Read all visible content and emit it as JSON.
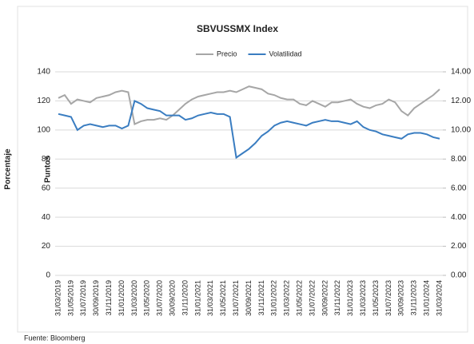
{
  "chart_data": {
    "type": "line",
    "title": "SBVUSSMX Index",
    "y_label": "Puntos",
    "y2_label": "Porcentaje",
    "source": "Fuente: Bloomberg",
    "categories": [
      "31/03/2019",
      null,
      "31/05/2019",
      null,
      "31/07/2019",
      null,
      "30/09/2019",
      null,
      "31/11/2019",
      null,
      "31/01/2020",
      null,
      "31/03/2020",
      null,
      "31/05/2020",
      null,
      "31/07/2020",
      null,
      "30/09/2020",
      null,
      "31/11/2020",
      null,
      "31/01/2021",
      null,
      "31/03/2021",
      null,
      "31/05/2021",
      null,
      "31/07/2021",
      null,
      "30/09/2021",
      null,
      "31/11/2021",
      null,
      "31/01/2022",
      null,
      "31/03/2022",
      null,
      "31/05/2022",
      null,
      "31/07/2022",
      null,
      "30/09/2022",
      null,
      "31/11/2022",
      null,
      "31/01/2023",
      null,
      "31/03/2023",
      null,
      "31/05/2023",
      null,
      "31/07/2023",
      null,
      "30/09/2023",
      null,
      "31/11/2023",
      null,
      "31/01/2024",
      null,
      "31/03/2024"
    ],
    "series": [
      {
        "name": "Precio",
        "color": "#a6a6a6",
        "values": [
          122,
          124,
          118,
          121,
          120,
          119,
          122,
          123,
          124,
          126,
          127,
          126,
          104,
          106,
          107,
          107,
          108,
          107,
          110,
          114,
          118,
          121,
          123,
          124,
          125,
          126,
          126,
          127,
          126,
          128,
          130,
          129,
          128,
          125,
          124,
          122,
          121,
          121,
          118,
          117,
          120,
          118,
          116,
          119,
          119,
          120,
          121,
          118,
          116,
          115,
          117,
          118,
          121,
          119,
          113,
          110,
          115,
          118,
          121,
          124,
          128
        ]
      },
      {
        "name": "Volatilidad",
        "color": "#3a7dc1",
        "axis": "y2",
        "values": [
          11.1,
          11.0,
          10.9,
          10.0,
          10.3,
          10.4,
          10.3,
          10.2,
          10.3,
          10.3,
          10.1,
          10.3,
          12.0,
          11.8,
          11.5,
          11.4,
          11.3,
          11.0,
          11.0,
          11.0,
          10.7,
          10.8,
          11.0,
          11.1,
          11.2,
          11.1,
          11.1,
          10.9,
          8.1,
          8.4,
          8.7,
          9.1,
          9.6,
          9.9,
          10.3,
          10.5,
          10.6,
          10.5,
          10.4,
          10.3,
          10.5,
          10.6,
          10.7,
          10.6,
          10.6,
          10.5,
          10.4,
          10.6,
          10.2,
          10.0,
          9.9,
          9.7,
          9.6,
          9.5,
          9.4,
          9.7,
          9.8,
          9.8,
          9.7,
          9.5,
          9.4
        ]
      }
    ],
    "ylim": [
      0,
      140
    ],
    "yticks": [
      0,
      20,
      40,
      60,
      80,
      100,
      120,
      140
    ],
    "y2lim": [
      0,
      14
    ],
    "y2ticks": [
      {
        "value": 0,
        "label": "0.00"
      },
      {
        "value": 2,
        "label": "2.00"
      },
      {
        "value": 4,
        "label": "4.00"
      },
      {
        "value": 6,
        "label": "6.00"
      },
      {
        "value": 8,
        "label": "8.00"
      },
      {
        "value": 10,
        "label": "10.00"
      },
      {
        "value": 12,
        "label": "12.00"
      },
      {
        "value": 14,
        "label": "14.00"
      }
    ],
    "grid": true,
    "legend": "top"
  }
}
